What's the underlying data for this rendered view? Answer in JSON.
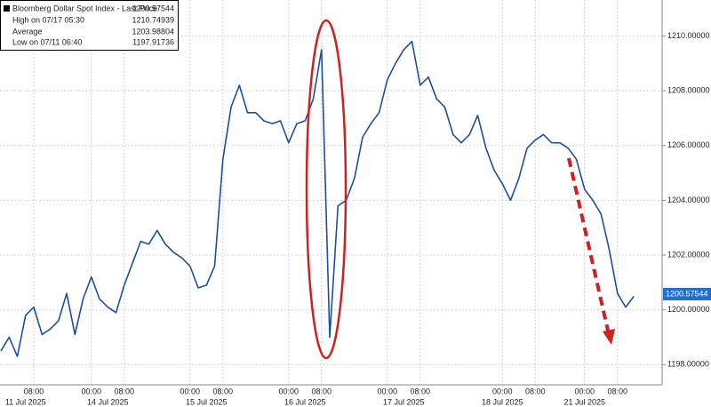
{
  "chart_data": {
    "type": "line",
    "legend": {
      "title": "Bloomberg Dollar Spot Index - Last Price",
      "last": 1200.57544,
      "high_label": "High on 07/17 05:30",
      "high": 1210.74939,
      "avg_label": "Average",
      "avg": 1203.98804,
      "low_label": "Low on 07/11 06:40",
      "low": 1197.91736
    },
    "categories": [
      null,
      null,
      null,
      null,
      "08:00",
      null,
      null,
      null,
      null,
      null,
      null,
      "00:00",
      null,
      null,
      null,
      "08:00",
      null,
      null,
      null,
      null,
      null,
      null,
      null,
      "00:00",
      null,
      null,
      null,
      "08:00",
      null,
      null,
      null,
      null,
      null,
      null,
      null,
      "00:00",
      null,
      null,
      null,
      "08:00",
      null,
      null,
      null,
      null,
      null,
      null,
      null,
      "00:00",
      null,
      null,
      null,
      "08:00",
      null,
      null,
      null,
      null,
      null,
      null,
      null,
      null,
      null,
      "00:00",
      null,
      null,
      null,
      "08:00",
      null,
      null,
      null,
      null,
      null,
      "00:00",
      null,
      null,
      null,
      "08:00",
      null,
      null
    ],
    "date_labels": [
      null,
      null,
      null,
      "11 Jul 2025",
      null,
      null,
      null,
      null,
      null,
      null,
      null,
      null,
      null,
      "14 Jul 2025",
      null,
      null,
      null,
      null,
      null,
      null,
      null,
      null,
      null,
      null,
      null,
      "15 Jul 2025",
      null,
      null,
      null,
      null,
      null,
      null,
      null,
      null,
      null,
      null,
      null,
      "16 Jul 2025",
      null,
      null,
      null,
      null,
      null,
      null,
      null,
      null,
      null,
      null,
      null,
      "17 Jul 2025",
      null,
      null,
      null,
      null,
      null,
      null,
      null,
      null,
      null,
      null,
      null,
      "18 Jul 2025",
      null,
      null,
      null,
      null,
      null,
      null,
      null,
      null,
      null,
      "21 Jul 2025",
      null,
      null,
      null,
      null
    ],
    "series": [
      {
        "name": "Bloomberg Dollar Spot Index",
        "color": "#1c4f9e",
        "values": [
          1198.5,
          1199.0,
          1198.3,
          1199.8,
          1200.1,
          1199.1,
          1199.3,
          1199.6,
          1200.6,
          1199.1,
          1200.4,
          1201.2,
          1200.4,
          1200.1,
          1199.9,
          1200.9,
          1201.7,
          1202.5,
          1202.4,
          1202.9,
          1202.4,
          1202.1,
          1201.9,
          1201.6,
          1200.8,
          1200.9,
          1201.6,
          1205.5,
          1207.4,
          1208.2,
          1207.2,
          1207.2,
          1206.9,
          1206.8,
          1206.9,
          1206.1,
          1206.8,
          1206.9,
          1207.7,
          1209.5,
          1199.0,
          1203.8,
          1204.0,
          1204.8,
          1206.3,
          1206.8,
          1207.2,
          1208.4,
          1209.0,
          1209.5,
          1209.8,
          1208.2,
          1208.5,
          1207.7,
          1207.4,
          1206.4,
          1206.1,
          1206.4,
          1207.1,
          1205.9,
          1205.1,
          1204.6,
          1204.0,
          1204.8,
          1205.9,
          1206.2,
          1206.4,
          1206.1,
          1206.1,
          1205.9,
          1205.5,
          1204.4,
          1204.0,
          1203.5,
          1202.2,
          1200.6,
          1200.1,
          1200.5
        ]
      }
    ],
    "ylim": [
      1197.2,
      1211.15
    ],
    "yticks": [
      {
        "value": 1198,
        "label": "1198.00000"
      },
      {
        "value": 1200,
        "label": "1200.00000"
      },
      {
        "value": 1202,
        "label": "1202.00000"
      },
      {
        "value": 1204,
        "label": "1204.00000"
      },
      {
        "value": 1206,
        "label": "1206.00000"
      },
      {
        "value": 1208,
        "label": "1208.00000"
      },
      {
        "value": 1210,
        "label": "1210.00000"
      }
    ],
    "grid": true
  }
}
